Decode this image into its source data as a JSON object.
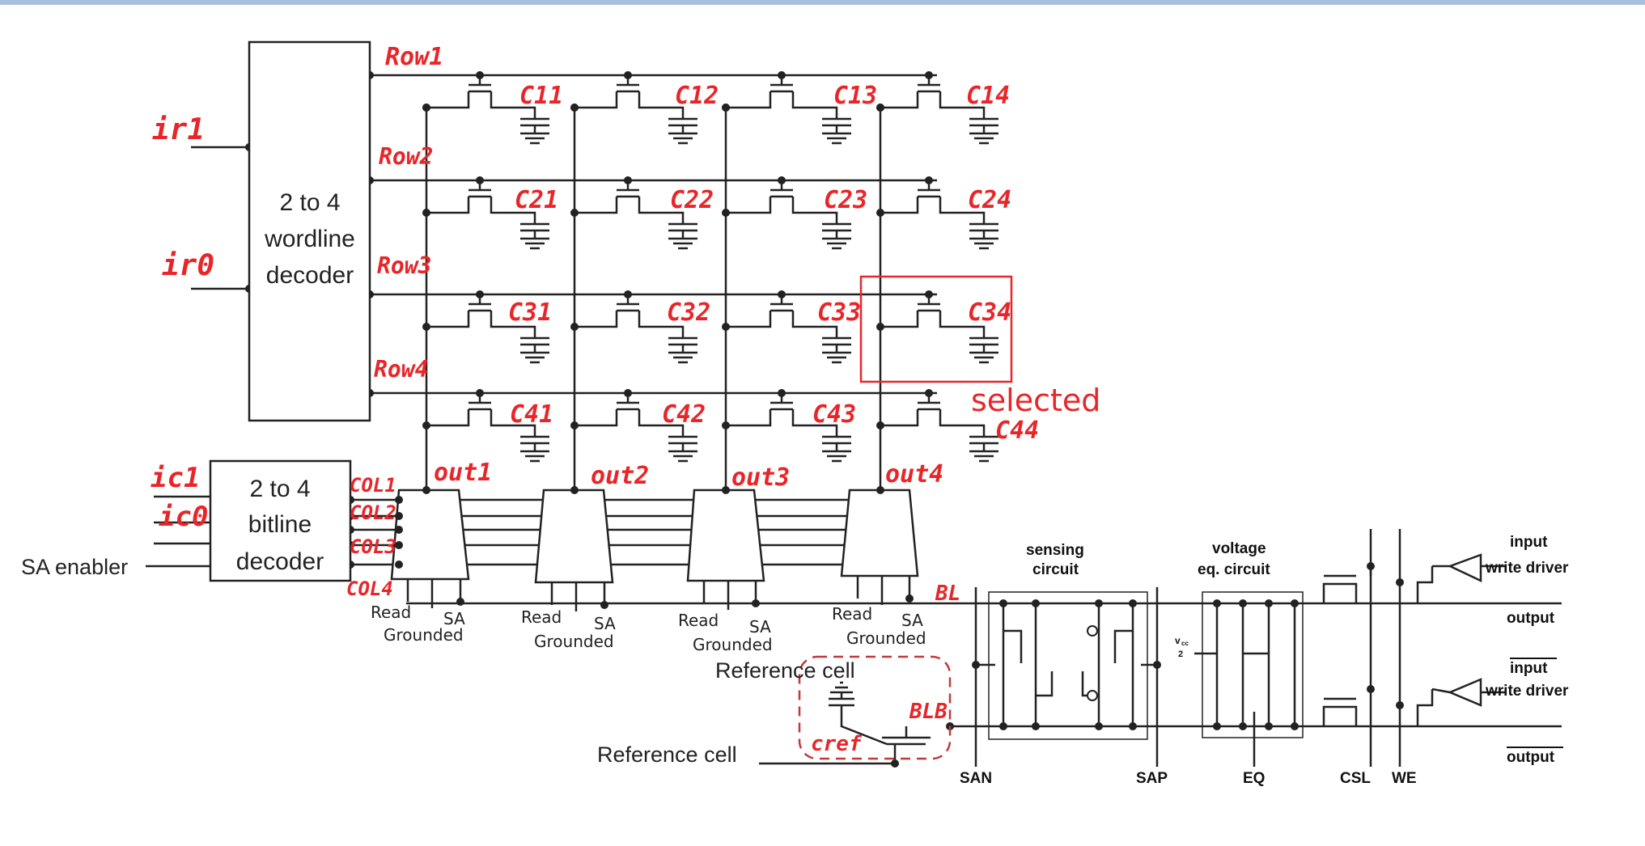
{
  "decoders": {
    "wordline": [
      "2 to 4",
      "wordline",
      "decoder"
    ],
    "bitline": [
      "2 to 4",
      "bitline",
      "decoder"
    ]
  },
  "inputs": {
    "ir1": "ir1",
    "ir0": "ir0",
    "ic1": "ic1",
    "ic0": "ic0",
    "sa_enabler": "SA enabler"
  },
  "rows": [
    "Row1",
    "Row2",
    "Row3",
    "Row4"
  ],
  "cols": [
    "COL1",
    "COL2",
    "COL3",
    "COL4"
  ],
  "cells": [
    [
      "C11",
      "C12",
      "C13",
      "C14"
    ],
    [
      "C21",
      "C22",
      "C23",
      "C24"
    ],
    [
      "C31",
      "C32",
      "C33",
      "C34"
    ],
    [
      "C41",
      "C42",
      "C43",
      "C44"
    ]
  ],
  "selection": {
    "cell": "C34",
    "label": "selected",
    "color": "#e8262a"
  },
  "outs": [
    "out1",
    "out2",
    "out3",
    "out4"
  ],
  "mux_labels": {
    "read": "Read",
    "grounded": "Grounded",
    "sa": "SA"
  },
  "reference": {
    "cell_label": "Reference cell",
    "input_label": "Reference cell",
    "cref": "cref",
    "blb": "BLB",
    "bl": "BL"
  },
  "sense_amp": {
    "sensing_circuit": [
      "sensing",
      "circuit"
    ],
    "voltage_eq": [
      "voltage",
      "eq. circuit"
    ],
    "vcc_half": [
      "v",
      "cc",
      "2"
    ],
    "signals": [
      "SAN",
      "SAP",
      "EQ",
      "CSL",
      "WE"
    ],
    "input": "input",
    "write_driver": "write driver",
    "output": "output",
    "input_bar": "input",
    "write_driver_bar": "write driver",
    "output_bar": "output"
  },
  "colors": {
    "ink": "#222222",
    "annotation": "#e8262a",
    "topbar": "#a8c0dc"
  }
}
